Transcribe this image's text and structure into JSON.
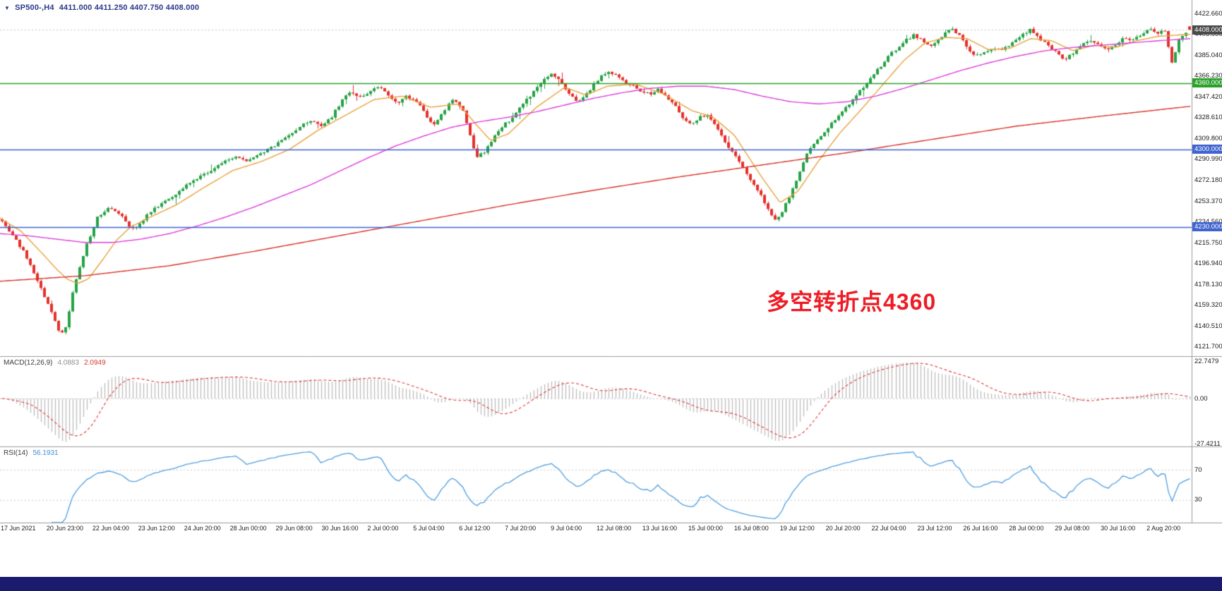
{
  "header": {
    "symbol": "SP500-,H4",
    "ohlc": "4411.000 4411.250 4407.750 4408.000"
  },
  "annotation": {
    "text": "多空转折点4360",
    "color": "#ee1c25"
  },
  "indicators": {
    "macd": {
      "label": "MACD(12,26,9)",
      "value_main": "4.0883",
      "value_signal": "2.0949",
      "axis_labels": [
        "22.7479",
        "0.00",
        "-27.4211"
      ]
    },
    "rsi": {
      "label": "RSI(14)",
      "value": "56.1931",
      "level_labels": [
        "70",
        "30"
      ]
    }
  },
  "price_axis": {
    "tags": [
      {
        "text": "4408.000",
        "value": 4408.0,
        "bg": "#4a4a4a"
      },
      {
        "text": "4360.000",
        "value": 4360.0,
        "bg": "#2aa12a"
      },
      {
        "text": "4300.000",
        "value": 4300.0,
        "bg": "#3f63cf"
      },
      {
        "text": "4230.000",
        "value": 4230.0,
        "bg": "#3f63cf"
      }
    ]
  },
  "taskbar": {
    "color": "#1a1a6e"
  },
  "chart_data": {
    "type": "candlestick",
    "symbol": "SP500-",
    "timeframe": "H4",
    "bars": 336,
    "seed": 42,
    "price_range": [
      4113.4,
      4434.8
    ],
    "up_color": "#26a347",
    "down_color": "#e5312b",
    "last_candle": {
      "o": 4411.0,
      "h": 4411.25,
      "l": 4407.75,
      "c": 4408.0
    },
    "bid": {
      "value": 4408.0,
      "color": "#c4c4c4"
    },
    "hlines": [
      {
        "value": 4360.0,
        "color": "#2aa12a",
        "label": "4360.000"
      },
      {
        "value": 4300.0,
        "color": "#3f63cf",
        "label": "4300.000"
      },
      {
        "value": 4230.0,
        "color": "#3f63cf",
        "label": "4230.000"
      }
    ],
    "price_ticks": [
      "4422.660",
      "4403.850",
      "4385.040",
      "4366.230",
      "4347.420",
      "4328.610",
      "4309.800",
      "4290.990",
      "4272.180",
      "4253.370",
      "4234.560",
      "4215.750",
      "4196.940",
      "4178.130",
      "4159.320",
      "4140.510",
      "4121.700"
    ],
    "time_ticks": [
      "17 Jun 2021",
      "20 Jun 23:00",
      "22 Jun 04:00",
      "23 Jun 12:00",
      "24 Jun 20:00",
      "28 Jun 00:00",
      "29 Jun 08:00",
      "30 Jun 16:00",
      "2 Jul 00:00",
      "5 Jul 04:00",
      "6 Jul 12:00",
      "7 Jul 20:00",
      "9 Jul 04:00",
      "12 Jul 08:00",
      "13 Jul 16:00",
      "15 Jul 00:00",
      "16 Jul 08:00",
      "19 Jul 12:00",
      "20 Jul 20:00",
      "22 Jul 04:00",
      "23 Jul 12:00",
      "26 Jul 16:00",
      "28 Jul 00:00",
      "29 Jul 08:00",
      "30 Jul 16:00",
      "2 Aug 20:00"
    ],
    "close_path": [
      [
        0,
        4237
      ],
      [
        18,
        4222
      ],
      [
        36,
        4205
      ],
      [
        52,
        4182
      ],
      [
        64,
        4165
      ],
      [
        76,
        4148
      ],
      [
        86,
        4132
      ],
      [
        94,
        4140
      ],
      [
        102,
        4168
      ],
      [
        112,
        4192
      ],
      [
        124,
        4216
      ],
      [
        138,
        4238
      ],
      [
        155,
        4248
      ],
      [
        170,
        4242
      ],
      [
        185,
        4228
      ],
      [
        198,
        4232
      ],
      [
        212,
        4243
      ],
      [
        228,
        4251
      ],
      [
        245,
        4258
      ],
      [
        262,
        4267
      ],
      [
        280,
        4274
      ],
      [
        298,
        4280
      ],
      [
        316,
        4288
      ],
      [
        334,
        4293
      ],
      [
        352,
        4290
      ],
      [
        370,
        4296
      ],
      [
        388,
        4303
      ],
      [
        406,
        4311
      ],
      [
        424,
        4320
      ],
      [
        440,
        4326
      ],
      [
        455,
        4322
      ],
      [
        470,
        4330
      ],
      [
        484,
        4344
      ],
      [
        496,
        4352
      ],
      [
        508,
        4346
      ],
      [
        522,
        4351
      ],
      [
        536,
        4357
      ],
      [
        550,
        4348
      ],
      [
        562,
        4342
      ],
      [
        576,
        4348
      ],
      [
        590,
        4344
      ],
      [
        602,
        4332
      ],
      [
        614,
        4320
      ],
      [
        628,
        4334
      ],
      [
        642,
        4346
      ],
      [
        654,
        4338
      ],
      [
        664,
        4316
      ],
      [
        674,
        4292
      ],
      [
        686,
        4298
      ],
      [
        700,
        4312
      ],
      [
        714,
        4322
      ],
      [
        728,
        4330
      ],
      [
        742,
        4342
      ],
      [
        756,
        4352
      ],
      [
        770,
        4362
      ],
      [
        782,
        4368
      ],
      [
        794,
        4362
      ],
      [
        806,
        4350
      ],
      [
        820,
        4343
      ],
      [
        834,
        4352
      ],
      [
        848,
        4364
      ],
      [
        860,
        4371
      ],
      [
        872,
        4367
      ],
      [
        884,
        4361
      ],
      [
        896,
        4357
      ],
      [
        908,
        4353
      ],
      [
        920,
        4350
      ],
      [
        932,
        4354
      ],
      [
        944,
        4347
      ],
      [
        956,
        4340
      ],
      [
        968,
        4328
      ],
      [
        980,
        4322
      ],
      [
        992,
        4330
      ],
      [
        1004,
        4331
      ],
      [
        1016,
        4320
      ],
      [
        1028,
        4306
      ],
      [
        1040,
        4295
      ],
      [
        1052,
        4284
      ],
      [
        1064,
        4272
      ],
      [
        1076,
        4260
      ],
      [
        1086,
        4248
      ],
      [
        1096,
        4236
      ],
      [
        1104,
        4240
      ],
      [
        1114,
        4252
      ],
      [
        1126,
        4268
      ],
      [
        1136,
        4286
      ],
      [
        1146,
        4300
      ],
      [
        1158,
        4308
      ],
      [
        1170,
        4317
      ],
      [
        1184,
        4328
      ],
      [
        1198,
        4337
      ],
      [
        1212,
        4348
      ],
      [
        1226,
        4358
      ],
      [
        1240,
        4369
      ],
      [
        1254,
        4380
      ],
      [
        1268,
        4390
      ],
      [
        1282,
        4398
      ],
      [
        1294,
        4403
      ],
      [
        1306,
        4398
      ],
      [
        1318,
        4393
      ],
      [
        1332,
        4400
      ],
      [
        1346,
        4409
      ],
      [
        1358,
        4403
      ],
      [
        1370,
        4392
      ],
      [
        1382,
        4384
      ],
      [
        1394,
        4387
      ],
      [
        1406,
        4392
      ],
      [
        1420,
        4389
      ],
      [
        1434,
        4396
      ],
      [
        1448,
        4403
      ],
      [
        1460,
        4409
      ],
      [
        1472,
        4401
      ],
      [
        1484,
        4393
      ],
      [
        1496,
        4387
      ],
      [
        1508,
        4381
      ],
      [
        1520,
        4387
      ],
      [
        1532,
        4394
      ],
      [
        1544,
        4399
      ],
      [
        1556,
        4394
      ],
      [
        1568,
        4390
      ],
      [
        1580,
        4395
      ],
      [
        1592,
        4401
      ],
      [
        1604,
        4398
      ],
      [
        1616,
        4403
      ],
      [
        1628,
        4409
      ],
      [
        1640,
        4405
      ],
      [
        1650,
        4408
      ],
      [
        1656,
        4390
      ],
      [
        1662,
        4374
      ],
      [
        1668,
        4396
      ],
      [
        1676,
        4404
      ],
      [
        1688,
        4409
      ]
    ],
    "ma": [
      {
        "name": "ma-fast",
        "color": "#e8a33d",
        "path": [
          [
            0,
            4238
          ],
          [
            30,
            4226
          ],
          [
            60,
            4206
          ],
          [
            80,
            4192
          ],
          [
            95,
            4183
          ],
          [
            110,
            4179
          ],
          [
            125,
            4183
          ],
          [
            145,
            4200
          ],
          [
            165,
            4218
          ],
          [
            185,
            4230
          ],
          [
            210,
            4238
          ],
          [
            250,
            4250
          ],
          [
            290,
            4266
          ],
          [
            330,
            4281
          ],
          [
            370,
            4289
          ],
          [
            410,
            4300
          ],
          [
            450,
            4317
          ],
          [
            490,
            4331
          ],
          [
            530,
            4345
          ],
          [
            570,
            4348
          ],
          [
            610,
            4338
          ],
          [
            650,
            4341
          ],
          [
            675,
            4322
          ],
          [
            695,
            4308
          ],
          [
            720,
            4314
          ],
          [
            760,
            4338
          ],
          [
            800,
            4356
          ],
          [
            830,
            4349
          ],
          [
            860,
            4357
          ],
          [
            900,
            4359
          ],
          [
            940,
            4350
          ],
          [
            980,
            4335
          ],
          [
            1010,
            4329
          ],
          [
            1040,
            4313
          ],
          [
            1080,
            4274
          ],
          [
            1105,
            4252
          ],
          [
            1130,
            4262
          ],
          [
            1160,
            4290
          ],
          [
            1190,
            4315
          ],
          [
            1220,
            4336
          ],
          [
            1250,
            4358
          ],
          [
            1280,
            4380
          ],
          [
            1310,
            4396
          ],
          [
            1340,
            4401
          ],
          [
            1370,
            4400
          ],
          [
            1400,
            4390
          ],
          [
            1430,
            4391
          ],
          [
            1460,
            4400
          ],
          [
            1490,
            4398
          ],
          [
            1520,
            4389
          ],
          [
            1550,
            4394
          ],
          [
            1580,
            4392
          ],
          [
            1610,
            4398
          ],
          [
            1640,
            4402
          ],
          [
            1688,
            4404
          ]
        ]
      },
      {
        "name": "ma-mid",
        "color": "#dd3fdd",
        "path": [
          [
            0,
            4224
          ],
          [
            40,
            4222
          ],
          [
            80,
            4219
          ],
          [
            120,
            4216
          ],
          [
            160,
            4216
          ],
          [
            200,
            4219
          ],
          [
            240,
            4224
          ],
          [
            280,
            4231
          ],
          [
            320,
            4239
          ],
          [
            360,
            4248
          ],
          [
            400,
            4258
          ],
          [
            440,
            4268
          ],
          [
            480,
            4280
          ],
          [
            520,
            4292
          ],
          [
            560,
            4303
          ],
          [
            600,
            4312
          ],
          [
            640,
            4320
          ],
          [
            680,
            4325
          ],
          [
            720,
            4329
          ],
          [
            760,
            4334
          ],
          [
            800,
            4340
          ],
          [
            840,
            4346
          ],
          [
            880,
            4351
          ],
          [
            920,
            4355
          ],
          [
            960,
            4357
          ],
          [
            1000,
            4357
          ],
          [
            1040,
            4354
          ],
          [
            1080,
            4348
          ],
          [
            1120,
            4343
          ],
          [
            1160,
            4341
          ],
          [
            1200,
            4343
          ],
          [
            1240,
            4348
          ],
          [
            1280,
            4355
          ],
          [
            1320,
            4363
          ],
          [
            1360,
            4371
          ],
          [
            1400,
            4378
          ],
          [
            1440,
            4384
          ],
          [
            1480,
            4389
          ],
          [
            1520,
            4392
          ],
          [
            1560,
            4394
          ],
          [
            1600,
            4396
          ],
          [
            1640,
            4398
          ],
          [
            1688,
            4400
          ]
        ]
      },
      {
        "name": "ma-slow",
        "color": "#d8332c",
        "path": [
          [
            0,
            4181
          ],
          [
            120,
            4186
          ],
          [
            240,
            4195
          ],
          [
            360,
            4208
          ],
          [
            480,
            4222
          ],
          [
            600,
            4236
          ],
          [
            720,
            4250
          ],
          [
            840,
            4263
          ],
          [
            960,
            4275
          ],
          [
            1080,
            4286
          ],
          [
            1200,
            4297
          ],
          [
            1320,
            4309
          ],
          [
            1440,
            4321
          ],
          [
            1560,
            4330
          ],
          [
            1688,
            4339
          ]
        ]
      }
    ],
    "macd": {
      "periods": [
        12,
        26,
        9
      ],
      "axis_max": 22.7479,
      "axis_min": -27.4211,
      "current_main": 4.0883,
      "current_signal": 2.0949,
      "histogram_color": "#bdbdbd",
      "signal_color": "#e23636"
    },
    "rsi": {
      "period": 14,
      "current": 56.1931,
      "levels": [
        70,
        30
      ],
      "line_color": "#4f9fe0",
      "range": [
        0,
        100
      ]
    }
  }
}
